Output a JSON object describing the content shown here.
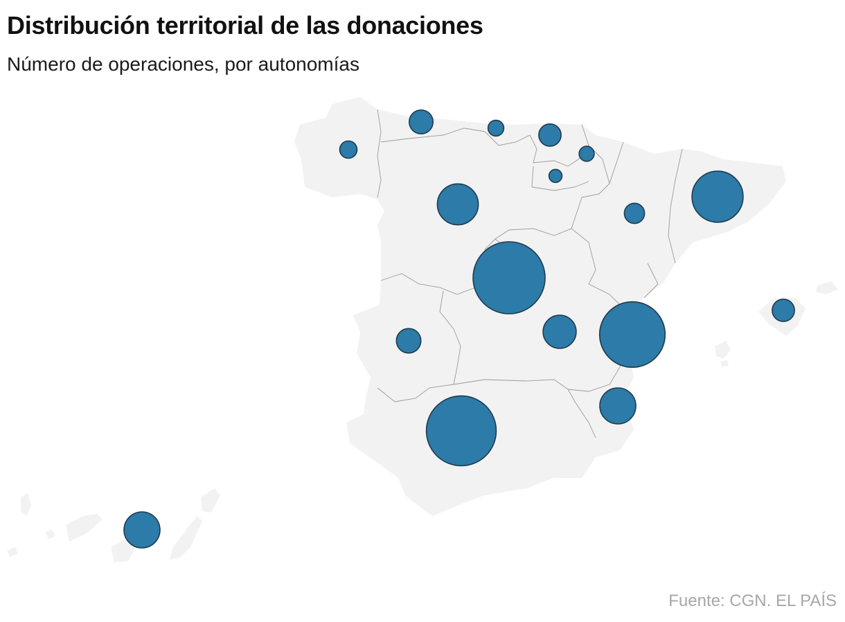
{
  "title": "Distribución territorial de las donaciones",
  "subtitle": "Número de operaciones, por autonomías",
  "source": "Fuente: CGN. EL PAÍS",
  "colors": {
    "land": "#f2f2f2",
    "borders": "#9a9a9a",
    "bubble_fill": "#2c7ba8",
    "bubble_stroke": "#1f3a4d",
    "source_text": "#a7a7a7"
  },
  "map_data": {
    "type": "proportional-symbol-map",
    "country": "España",
    "symbol": "circle",
    "regions": [
      {
        "id": "galicia",
        "relative_size": 0.24
      },
      {
        "id": "asturias",
        "relative_size": 0.33
      },
      {
        "id": "cantabria",
        "relative_size": 0.22
      },
      {
        "id": "pais-vasco",
        "relative_size": 0.31
      },
      {
        "id": "navarra",
        "relative_size": 0.21
      },
      {
        "id": "la-rioja",
        "relative_size": 0.18
      },
      {
        "id": "castilla-y-leon",
        "relative_size": 0.57
      },
      {
        "id": "aragon",
        "relative_size": 0.28
      },
      {
        "id": "cataluna",
        "relative_size": 0.71
      },
      {
        "id": "madrid",
        "relative_size": 1.0
      },
      {
        "id": "extremadura",
        "relative_size": 0.34
      },
      {
        "id": "castilla-la-mancha",
        "relative_size": 0.46
      },
      {
        "id": "comunidad-valenciana",
        "relative_size": 0.91
      },
      {
        "id": "baleares",
        "relative_size": 0.31
      },
      {
        "id": "murcia",
        "relative_size": 0.5
      },
      {
        "id": "andalucia",
        "relative_size": 0.97
      },
      {
        "id": "canarias",
        "relative_size": 0.5
      }
    ]
  }
}
